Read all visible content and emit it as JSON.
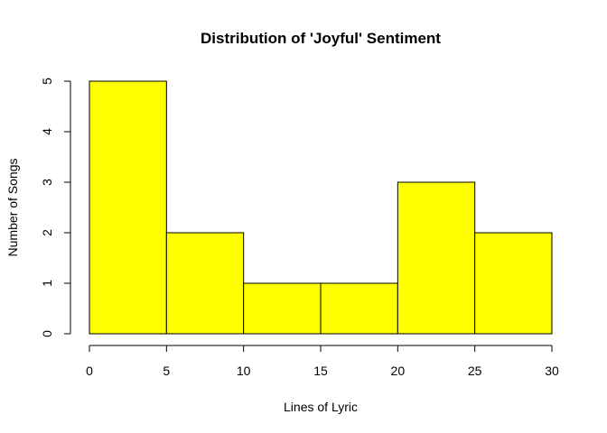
{
  "chart_data": {
    "type": "bar",
    "title": "Distribution of 'Joyful' Sentiment",
    "xlabel": "Lines of Lyric",
    "ylabel": "Number of Songs",
    "bins": [
      {
        "x0": 0,
        "x1": 5,
        "count": 5
      },
      {
        "x0": 5,
        "x1": 10,
        "count": 2
      },
      {
        "x0": 10,
        "x1": 15,
        "count": 1
      },
      {
        "x0": 15,
        "x1": 20,
        "count": 1
      },
      {
        "x0": 20,
        "x1": 25,
        "count": 3
      },
      {
        "x0": 25,
        "x1": 30,
        "count": 2
      }
    ],
    "xlim": [
      0,
      30
    ],
    "ylim": [
      0,
      5
    ],
    "xticks": [
      0,
      5,
      10,
      15,
      20,
      25,
      30
    ],
    "yticks": [
      0,
      1,
      2,
      3,
      4,
      5
    ],
    "bar_color": "#ffff00",
    "grid": false
  }
}
